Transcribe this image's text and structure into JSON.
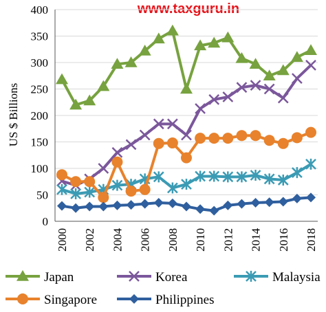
{
  "watermark": "www.taxguru.in",
  "chart_data": {
    "type": "line",
    "title": "",
    "xlabel": "",
    "ylabel": "US $ Billions",
    "ylim": [
      0,
      400
    ],
    "yticks": [
      0,
      50,
      100,
      150,
      200,
      250,
      300,
      350,
      400
    ],
    "x": [
      2000,
      2001,
      2002,
      2003,
      2004,
      2005,
      2006,
      2007,
      2008,
      2009,
      2010,
      2011,
      2012,
      2013,
      2014,
      2015,
      2016,
      2017,
      2018
    ],
    "xticks": [
      "2000",
      "2002",
      "2004",
      "2006",
      "2008",
      "2010",
      "2012",
      "2014",
      "2016",
      "2018"
    ],
    "grid": "horizontal",
    "legend": "bottom",
    "series": [
      {
        "name": "Japan",
        "color": "#77a23f",
        "marker": "triangle",
        "values": [
          268,
          220,
          228,
          255,
          297,
          300,
          322,
          345,
          360,
          250,
          332,
          337,
          347,
          308,
          297,
          275,
          285,
          310,
          323
        ]
      },
      {
        "name": "Korea",
        "color": "#7b579b",
        "marker": "x",
        "values": [
          76,
          68,
          80,
          100,
          130,
          145,
          163,
          184,
          184,
          163,
          213,
          230,
          235,
          253,
          257,
          250,
          233,
          270,
          295
        ]
      },
      {
        "name": "Malaysia",
        "color": "#3b9bb4",
        "marker": "star",
        "values": [
          60,
          52,
          55,
          60,
          68,
          70,
          80,
          84,
          63,
          70,
          85,
          85,
          84,
          84,
          87,
          80,
          78,
          92,
          108
        ]
      },
      {
        "name": "Singapore",
        "color": "#e8822c",
        "marker": "circle",
        "values": [
          88,
          75,
          75,
          45,
          112,
          57,
          60,
          147,
          148,
          120,
          157,
          157,
          157,
          162,
          162,
          153,
          147,
          158,
          168
        ]
      },
      {
        "name": "Philippines",
        "color": "#2f5f9e",
        "marker": "diamond",
        "values": [
          29,
          25,
          28,
          28,
          30,
          31,
          33,
          35,
          34,
          28,
          23,
          20,
          30,
          33,
          35,
          36,
          37,
          43,
          45
        ]
      }
    ]
  }
}
